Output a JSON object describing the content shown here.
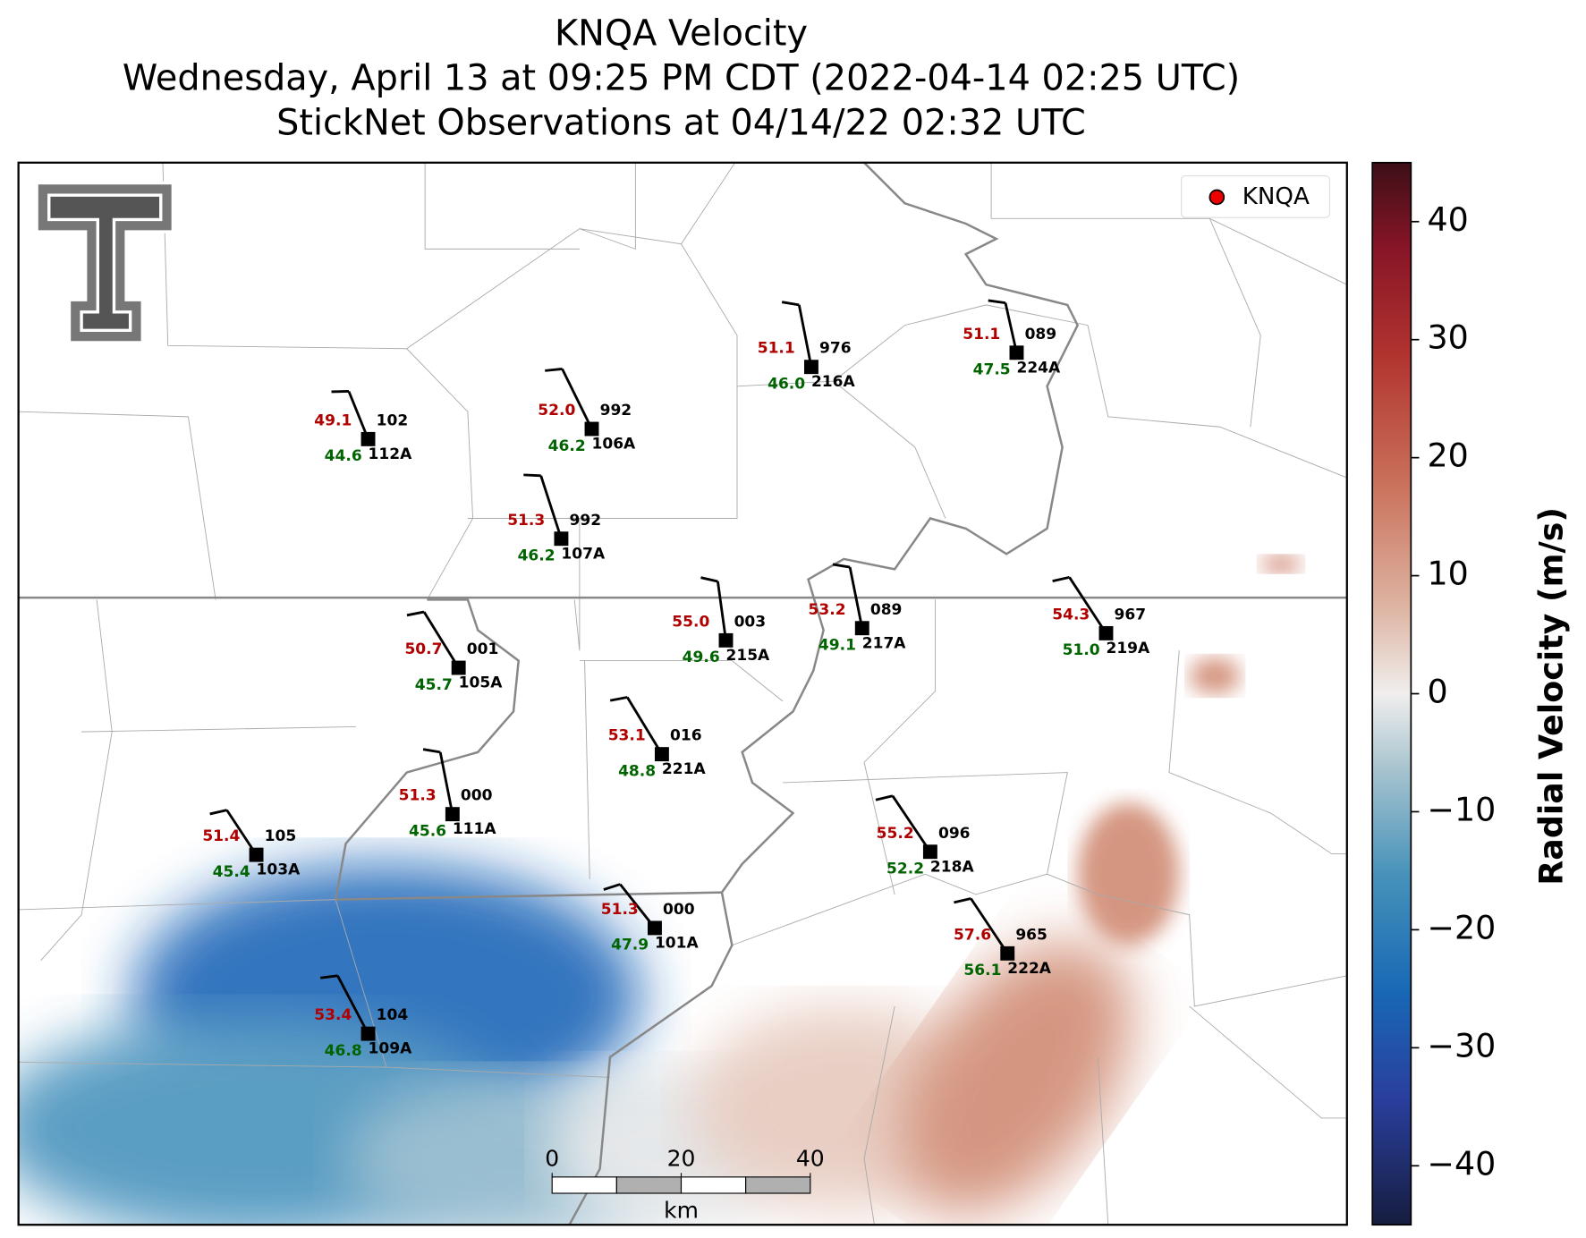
{
  "title": [
    "KNQA Velocity",
    "Wednesday, April 13 at 09:25 PM CDT (2022-04-14 02:25 UTC)",
    "StickNet Observations at 04/14/22 02:32 UTC"
  ],
  "legend": {
    "label": "KNQA"
  },
  "stations": [
    {
      "temperature": "49.1",
      "dewpoint": "44.6",
      "pressure": "102",
      "id": "112A"
    },
    {
      "temperature": "52.0",
      "dewpoint": "46.2",
      "pressure": "992",
      "id": "106A"
    },
    {
      "temperature": "51.3",
      "dewpoint": "46.2",
      "pressure": "992",
      "id": "107A"
    },
    {
      "temperature": "51.1",
      "dewpoint": "46.0",
      "pressure": "976",
      "id": "216A"
    },
    {
      "temperature": "51.1",
      "dewpoint": "47.5",
      "pressure": "089",
      "id": "224A"
    },
    {
      "temperature": "50.7",
      "dewpoint": "45.7",
      "pressure": "001",
      "id": "105A"
    },
    {
      "temperature": "55.0",
      "dewpoint": "49.6",
      "pressure": "003",
      "id": "215A"
    },
    {
      "temperature": "53.2",
      "dewpoint": "49.1",
      "pressure": "089",
      "id": "217A"
    },
    {
      "temperature": "54.3",
      "dewpoint": "51.0",
      "pressure": "967",
      "id": "219A"
    },
    {
      "temperature": "53.1",
      "dewpoint": "48.8",
      "pressure": "016",
      "id": "221A"
    },
    {
      "temperature": "51.3",
      "dewpoint": "45.6",
      "pressure": "000",
      "id": "111A"
    },
    {
      "temperature": "51.4",
      "dewpoint": "45.4",
      "pressure": "105",
      "id": "103A"
    },
    {
      "temperature": "55.2",
      "dewpoint": "52.2",
      "pressure": "096",
      "id": "218A"
    },
    {
      "temperature": "51.3",
      "dewpoint": "47.9",
      "pressure": "000",
      "id": "101A"
    },
    {
      "temperature": "57.6",
      "dewpoint": "56.1",
      "pressure": "965",
      "id": "222A"
    },
    {
      "temperature": "53.4",
      "dewpoint": "46.8",
      "pressure": "104",
      "id": "109A"
    }
  ],
  "scalebar": {
    "ticks": [
      0,
      20,
      40
    ],
    "unit": "km"
  },
  "colorbar": {
    "label": "Radial Velocity (m/s)",
    "lim": [
      -45,
      45
    ],
    "ticks": [
      {
        "value": -40,
        "label": "−40"
      },
      {
        "value": -30,
        "label": "−30"
      },
      {
        "value": -20,
        "label": "−20"
      },
      {
        "value": -10,
        "label": "−10"
      },
      0,
      10,
      20,
      30,
      40
    ]
  }
}
